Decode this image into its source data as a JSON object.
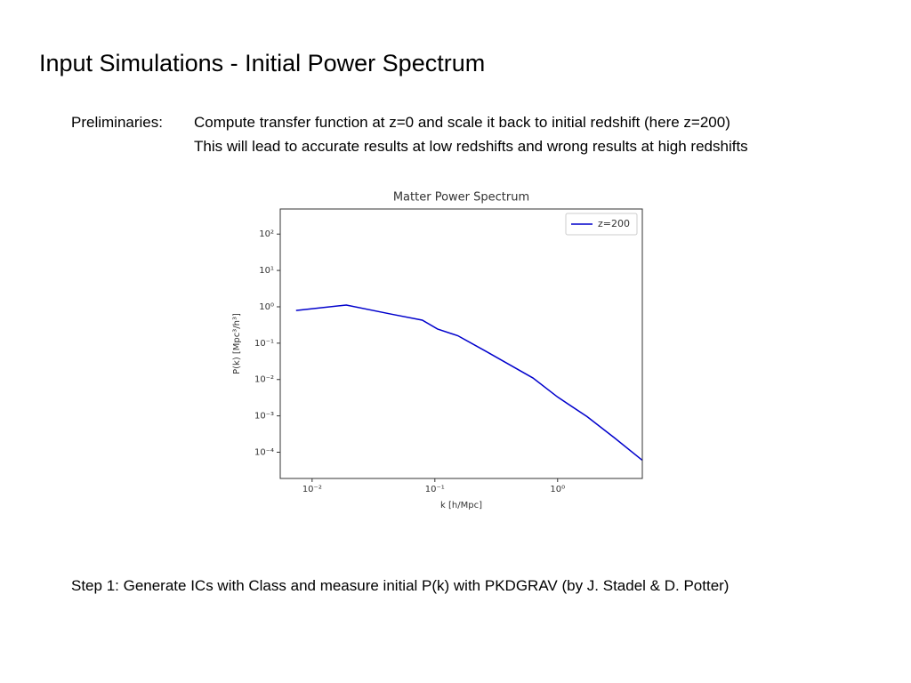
{
  "slide": {
    "title": "Input Simulations - Initial Power Spectrum",
    "preliminaries_label": "Preliminaries:",
    "preliminaries_lines": [
      "Compute transfer function at z=0 and scale it back to initial redshift (here z=200)",
      "This will lead to accurate results at low redshifts and wrong results at high redshifts"
    ],
    "step1": "Step 1: Generate ICs with Class and measure initial P(k) with PKDGRAV (by J. Stadel & D. Potter)"
  },
  "chart_data": {
    "type": "line",
    "title": "Matter Power Spectrum",
    "x_label": "k [h/Mpc]",
    "y_label": "P(k) [Mpc³/h³]",
    "xlog": true,
    "ylog": true,
    "x": [
      0.0074,
      0.019,
      0.044,
      0.079,
      0.105,
      0.154,
      0.26,
      0.63,
      1.0,
      1.74,
      2.9,
      4.9
    ],
    "series": [
      {
        "name": "z=200",
        "color": "#0000cc",
        "values": [
          0.79,
          1.12,
          0.63,
          0.43,
          0.245,
          0.16,
          0.06,
          0.011,
          0.0033,
          0.00095,
          0.00025,
          6e-05
        ]
      }
    ],
    "xlim": [
      0.0055,
      4.9
    ],
    "ylim": [
      1.9e-05,
      490
    ],
    "xticks": [
      {
        "value": 0.01,
        "label": "10⁻²"
      },
      {
        "value": 0.1,
        "label": "10⁻¹"
      },
      {
        "value": 1,
        "label": "10⁰"
      }
    ],
    "yticks": [
      {
        "value": 0.0001,
        "label": "10⁻⁴"
      },
      {
        "value": 0.001,
        "label": "10⁻³"
      },
      {
        "value": 0.01,
        "label": "10⁻²"
      },
      {
        "value": 0.1,
        "label": "10⁻¹"
      },
      {
        "value": 1,
        "label": "10⁰"
      },
      {
        "value": 10,
        "label": "10¹"
      },
      {
        "value": 100,
        "label": "10²"
      }
    ],
    "legend": "upper right",
    "grid": false
  }
}
